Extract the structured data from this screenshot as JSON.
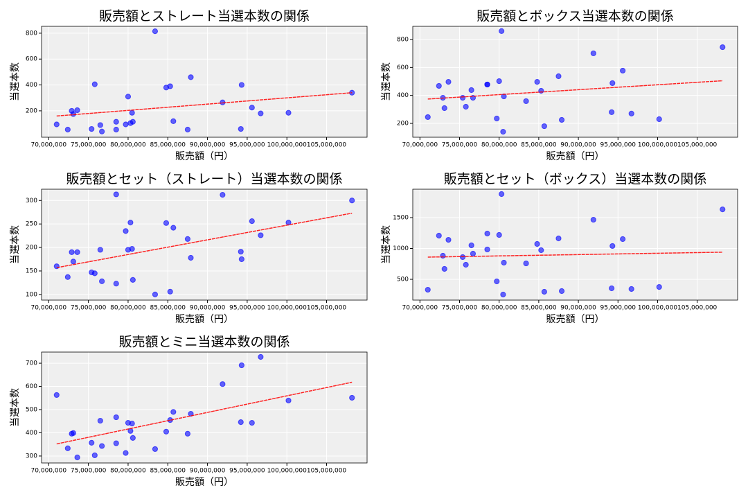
{
  "chart_data": [
    {
      "type": "scatter",
      "title": "販売額とストレート当選本数の関係",
      "x_label": "販売額（円）",
      "y_label": "当選本数",
      "x": [
        71000000,
        72400000,
        72900000,
        73100000,
        73600000,
        75400000,
        75800000,
        76500000,
        76700000,
        78500000,
        78500000,
        79700000,
        80000000,
        80300000,
        80500000,
        80600000,
        83400000,
        84800000,
        85300000,
        85700000,
        87500000,
        87900000,
        91900000,
        94200000,
        94300000,
        95600000,
        96700000,
        100200000,
        108200000
      ],
      "series": [
        {
          "color": "#0000ff",
          "values": [
            95,
            55,
            200,
            175,
            205,
            60,
            405,
            90,
            40,
            115,
            55,
            95,
            310,
            105,
            185,
            115,
            815,
            380,
            390,
            120,
            55,
            460,
            265,
            60,
            400,
            225,
            180,
            185,
            340
          ]
        }
      ],
      "trendline": {
        "color": "#ff0000",
        "x": [
          71000000,
          108200000
        ],
        "values": [
          160,
          340
        ]
      },
      "xlim": [
        69100000,
        110100000
      ],
      "ylim": [
        -4,
        853
      ],
      "xticks": [
        {
          "value": 70000000,
          "label": "70,000,000"
        },
        {
          "value": 75000000,
          "label": "75,000,000"
        },
        {
          "value": 80000000,
          "label": "80,000,000"
        },
        {
          "value": 85000000,
          "label": "85,000,000"
        },
        {
          "value": 90000000,
          "label": "90,000,000"
        },
        {
          "value": 95000000,
          "label": "95,000,000"
        },
        {
          "value": 100000000,
          "label": "100,000,000"
        },
        {
          "value": 105000000,
          "label": "105,000,000"
        }
      ],
      "yticks": [
        200,
        400,
        600,
        800
      ],
      "grid": true
    },
    {
      "type": "scatter",
      "title": "販売額とボックス当選本数の関係",
      "x_label": "販売額（円）",
      "y_label": "当選本数",
      "x": [
        71000000,
        72400000,
        72900000,
        73100000,
        73600000,
        75400000,
        75800000,
        76500000,
        76700000,
        78500000,
        78500000,
        79700000,
        80000000,
        80300000,
        80500000,
        80600000,
        83400000,
        84800000,
        85300000,
        85700000,
        87500000,
        87900000,
        91900000,
        94200000,
        94300000,
        95600000,
        96700000,
        100200000,
        108200000
      ],
      "series": [
        {
          "color": "#0000ff",
          "values": [
            245,
            468,
            383,
            309,
            497,
            383,
            319,
            438,
            383,
            478,
            478,
            235,
            502,
            860,
            140,
            393,
            359,
            497,
            433,
            180,
            537,
            225,
            701,
            280,
            488,
            577,
            270,
            230,
            745
          ]
        }
      ],
      "trendline": {
        "color": "#ff0000",
        "x": [
          71000000,
          108200000
        ],
        "values": [
          374,
          505
        ]
      },
      "xlim": [
        69100000,
        110100000
      ],
      "ylim": [
        101,
        894
      ],
      "xticks": [
        {
          "value": 70000000,
          "label": "70,000,000"
        },
        {
          "value": 75000000,
          "label": "75,000,000"
        },
        {
          "value": 80000000,
          "label": "80,000,000"
        },
        {
          "value": 85000000,
          "label": "85,000,000"
        },
        {
          "value": 90000000,
          "label": "90,000,000"
        },
        {
          "value": 95000000,
          "label": "95,000,000"
        },
        {
          "value": 100000000,
          "label": "100,000,000"
        },
        {
          "value": 105000000,
          "label": "105,000,000"
        }
      ],
      "yticks": [
        200,
        400,
        600,
        800
      ],
      "grid": true
    },
    {
      "type": "scatter",
      "title": "販売額とセット（ストレート）当選本数の関係",
      "x_label": "販売額（円）",
      "y_label": "当選本数",
      "x": [
        71000000,
        72400000,
        72900000,
        73100000,
        73600000,
        75400000,
        75800000,
        76500000,
        76700000,
        78500000,
        78500000,
        79700000,
        80000000,
        80300000,
        80500000,
        80600000,
        83400000,
        84800000,
        85300000,
        85700000,
        87500000,
        87900000,
        91900000,
        94200000,
        94300000,
        95600000,
        96700000,
        100200000,
        108200000
      ],
      "series": [
        {
          "color": "#0000ff",
          "values": [
            160,
            137,
            190,
            170,
            190,
            147,
            145,
            195,
            128,
            123,
            313,
            235,
            195,
            253,
            197,
            131,
            100,
            252,
            106,
            242,
            218,
            178,
            312,
            191,
            175,
            256,
            226,
            253,
            300
          ]
        }
      ],
      "trendline": {
        "color": "#ff0000",
        "x": [
          71000000,
          108200000
        ],
        "values": [
          157,
          273
        ]
      },
      "xlim": [
        69100000,
        110100000
      ],
      "ylim": [
        88,
        324
      ],
      "xticks": [
        {
          "value": 70000000,
          "label": "70,000,000"
        },
        {
          "value": 75000000,
          "label": "75,000,000"
        },
        {
          "value": 80000000,
          "label": "80,000,000"
        },
        {
          "value": 85000000,
          "label": "85,000,000"
        },
        {
          "value": 90000000,
          "label": "90,000,000"
        },
        {
          "value": 95000000,
          "label": "95,000,000"
        },
        {
          "value": 100000000,
          "label": "100,000,000"
        },
        {
          "value": 105000000,
          "label": "105,000,000"
        }
      ],
      "yticks": [
        100,
        150,
        200,
        250,
        300
      ],
      "grid": true
    },
    {
      "type": "scatter",
      "title": "販売額とセット（ボックス）当選本数の関係",
      "x_label": "販売額（円）",
      "y_label": "当選本数",
      "x": [
        71000000,
        72400000,
        72900000,
        73100000,
        73600000,
        75400000,
        75800000,
        76500000,
        76700000,
        78500000,
        78500000,
        79700000,
        80000000,
        80300000,
        80500000,
        80600000,
        83400000,
        84800000,
        85300000,
        85700000,
        87500000,
        87900000,
        91900000,
        94200000,
        94300000,
        95600000,
        96700000,
        100200000,
        108200000
      ],
      "series": [
        {
          "color": "#0000ff",
          "values": [
            331,
            1208,
            882,
            669,
            1140,
            860,
            736,
            1051,
            916,
            1242,
            984,
            466,
            1219,
            1882,
            253,
            770,
            758,
            1073,
            972,
            298,
            1163,
            309,
            1466,
            354,
            1040,
            1152,
            343,
            376,
            1634
          ]
        }
      ],
      "trendline": {
        "color": "#ff0000",
        "x": [
          71000000,
          108200000
        ],
        "values": [
          860,
          940
        ]
      },
      "xlim": [
        69100000,
        110100000
      ],
      "ylim": [
        163,
        1961
      ],
      "xticks": [
        {
          "value": 70000000,
          "label": "70,000,000"
        },
        {
          "value": 75000000,
          "label": "75,000,000"
        },
        {
          "value": 80000000,
          "label": "80,000,000"
        },
        {
          "value": 85000000,
          "label": "85,000,000"
        },
        {
          "value": 90000000,
          "label": "90,000,000"
        },
        {
          "value": 95000000,
          "label": "95,000,000"
        },
        {
          "value": 100000000,
          "label": "100,000,000"
        },
        {
          "value": 105000000,
          "label": "105,000,000"
        }
      ],
      "yticks": [
        500,
        1000,
        1500
      ],
      "grid": true
    },
    {
      "type": "scatter",
      "title": "販売額とミニ当選本数の関係",
      "x_label": "販売額（円）",
      "y_label": "当選本数",
      "x": [
        71000000,
        72400000,
        72900000,
        73100000,
        73600000,
        75400000,
        75800000,
        76500000,
        76700000,
        78500000,
        78500000,
        79700000,
        80000000,
        80300000,
        80500000,
        80600000,
        83400000,
        84800000,
        85300000,
        85700000,
        87500000,
        87900000,
        91900000,
        94200000,
        94300000,
        95600000,
        96700000,
        100200000,
        108200000
      ],
      "series": [
        {
          "color": "#0000ff",
          "values": [
            563,
            333,
            396,
            399,
            294,
            357,
            303,
            452,
            343,
            467,
            355,
            313,
            443,
            408,
            440,
            378,
            330,
            405,
            455,
            490,
            396,
            482,
            610,
            446,
            691,
            443,
            727,
            539,
            551
          ]
        }
      ],
      "trendline": {
        "color": "#ff0000",
        "x": [
          71000000,
          108200000
        ],
        "values": [
          352,
          618
        ]
      },
      "xlim": [
        69100000,
        110100000
      ],
      "ylim": [
        270,
        748
      ],
      "xticks": [
        {
          "value": 70000000,
          "label": "70,000,000"
        },
        {
          "value": 75000000,
          "label": "75,000,000"
        },
        {
          "value": 80000000,
          "label": "80,000,000"
        },
        {
          "value": 85000000,
          "label": "85,000,000"
        },
        {
          "value": 90000000,
          "label": "90,000,000"
        },
        {
          "value": 95000000,
          "label": "95,000,000"
        },
        {
          "value": 100000000,
          "label": "100,000,000"
        },
        {
          "value": 105000000,
          "label": "105,000,000"
        }
      ],
      "yticks": [
        300,
        400,
        500,
        600,
        700
      ],
      "grid": true
    }
  ]
}
